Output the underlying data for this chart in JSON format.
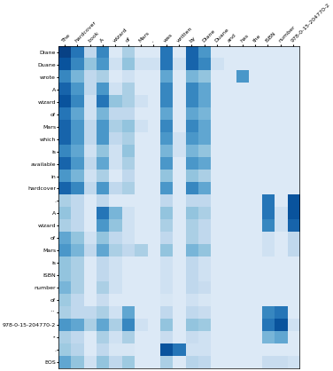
{
  "col_labels": [
    "The",
    "hardcover",
    "book",
    "A",
    "wizard",
    "of",
    "Mars",
    ",",
    "was",
    "written",
    "by",
    "Diane",
    "Duane",
    "and",
    "has",
    "the",
    "ISBN",
    "number",
    "978-0-15-204770-2"
  ],
  "row_labels": [
    "Diane",
    "Duane",
    "wrote",
    "A",
    "wizard",
    "of",
    "Mars",
    "which",
    "is",
    "available",
    "in",
    "hardcover",
    ".",
    "A",
    "wizard",
    "of",
    "Mars",
    "is",
    "ISBN",
    "number",
    "of",
    "``",
    "978-0-15-204770-2",
    "''",
    ".",
    "EOS"
  ],
  "matrix": [
    [
      0.7,
      0.55,
      0.2,
      0.5,
      0.1,
      0.25,
      0.1,
      0.1,
      0.55,
      0.1,
      0.6,
      0.45,
      0.1,
      0.1,
      0.1,
      0.1,
      0.1,
      0.1,
      0.1
    ],
    [
      0.65,
      0.5,
      0.3,
      0.45,
      0.15,
      0.3,
      0.15,
      0.15,
      0.55,
      0.15,
      0.6,
      0.5,
      0.15,
      0.1,
      0.1,
      0.1,
      0.1,
      0.1,
      0.1
    ],
    [
      0.5,
      0.35,
      0.2,
      0.25,
      0.1,
      0.15,
      0.1,
      0.1,
      0.4,
      0.1,
      0.35,
      0.3,
      0.1,
      0.1,
      0.45,
      0.1,
      0.1,
      0.1,
      0.1
    ],
    [
      0.6,
      0.45,
      0.2,
      0.45,
      0.15,
      0.25,
      0.1,
      0.1,
      0.5,
      0.1,
      0.5,
      0.4,
      0.1,
      0.1,
      0.1,
      0.1,
      0.1,
      0.1,
      0.1
    ],
    [
      0.65,
      0.5,
      0.15,
      0.55,
      0.3,
      0.25,
      0.15,
      0.1,
      0.5,
      0.1,
      0.5,
      0.4,
      0.1,
      0.1,
      0.1,
      0.1,
      0.1,
      0.1,
      0.1
    ],
    [
      0.55,
      0.4,
      0.15,
      0.35,
      0.2,
      0.2,
      0.1,
      0.1,
      0.4,
      0.1,
      0.4,
      0.35,
      0.1,
      0.1,
      0.1,
      0.1,
      0.1,
      0.1,
      0.1
    ],
    [
      0.6,
      0.45,
      0.2,
      0.45,
      0.25,
      0.3,
      0.15,
      0.1,
      0.5,
      0.1,
      0.5,
      0.4,
      0.1,
      0.1,
      0.1,
      0.1,
      0.1,
      0.1,
      0.1
    ],
    [
      0.6,
      0.45,
      0.2,
      0.45,
      0.2,
      0.25,
      0.1,
      0.1,
      0.45,
      0.15,
      0.45,
      0.4,
      0.1,
      0.1,
      0.1,
      0.1,
      0.1,
      0.1,
      0.1
    ],
    [
      0.5,
      0.4,
      0.15,
      0.3,
      0.15,
      0.3,
      0.1,
      0.1,
      0.35,
      0.15,
      0.35,
      0.3,
      0.1,
      0.1,
      0.1,
      0.1,
      0.1,
      0.1,
      0.1
    ],
    [
      0.6,
      0.45,
      0.2,
      0.4,
      0.15,
      0.25,
      0.1,
      0.1,
      0.45,
      0.1,
      0.45,
      0.4,
      0.1,
      0.1,
      0.1,
      0.1,
      0.1,
      0.1,
      0.1
    ],
    [
      0.45,
      0.35,
      0.15,
      0.25,
      0.1,
      0.2,
      0.1,
      0.1,
      0.3,
      0.1,
      0.3,
      0.25,
      0.1,
      0.1,
      0.1,
      0.1,
      0.1,
      0.1,
      0.1
    ],
    [
      0.6,
      0.5,
      0.2,
      0.45,
      0.2,
      0.25,
      0.1,
      0.1,
      0.45,
      0.1,
      0.5,
      0.4,
      0.1,
      0.1,
      0.1,
      0.1,
      0.1,
      0.1,
      0.1
    ],
    [
      0.25,
      0.2,
      0.1,
      0.2,
      0.1,
      0.1,
      0.1,
      0.1,
      0.2,
      0.1,
      0.2,
      0.2,
      0.1,
      0.1,
      0.1,
      0.1,
      0.55,
      0.1,
      0.65
    ],
    [
      0.3,
      0.2,
      0.1,
      0.55,
      0.35,
      0.15,
      0.1,
      0.1,
      0.3,
      0.1,
      0.3,
      0.25,
      0.1,
      0.1,
      0.1,
      0.1,
      0.55,
      0.15,
      0.65
    ],
    [
      0.25,
      0.2,
      0.1,
      0.45,
      0.3,
      0.15,
      0.1,
      0.1,
      0.25,
      0.1,
      0.25,
      0.2,
      0.1,
      0.1,
      0.1,
      0.1,
      0.5,
      0.15,
      0.6
    ],
    [
      0.4,
      0.3,
      0.15,
      0.3,
      0.2,
      0.15,
      0.1,
      0.1,
      0.2,
      0.1,
      0.25,
      0.2,
      0.1,
      0.1,
      0.1,
      0.1,
      0.15,
      0.1,
      0.2
    ],
    [
      0.45,
      0.35,
      0.2,
      0.4,
      0.25,
      0.2,
      0.25,
      0.1,
      0.3,
      0.1,
      0.35,
      0.3,
      0.1,
      0.1,
      0.1,
      0.1,
      0.15,
      0.1,
      0.2
    ],
    [
      0.3,
      0.25,
      0.1,
      0.2,
      0.15,
      0.1,
      0.1,
      0.1,
      0.15,
      0.1,
      0.2,
      0.15,
      0.1,
      0.1,
      0.1,
      0.1,
      0.1,
      0.1,
      0.1
    ],
    [
      0.3,
      0.25,
      0.1,
      0.2,
      0.15,
      0.1,
      0.1,
      0.1,
      0.15,
      0.1,
      0.2,
      0.15,
      0.1,
      0.1,
      0.1,
      0.1,
      0.1,
      0.1,
      0.1
    ],
    [
      0.35,
      0.25,
      0.1,
      0.25,
      0.15,
      0.1,
      0.1,
      0.1,
      0.15,
      0.1,
      0.2,
      0.18,
      0.1,
      0.1,
      0.1,
      0.1,
      0.1,
      0.1,
      0.1
    ],
    [
      0.28,
      0.2,
      0.1,
      0.18,
      0.1,
      0.1,
      0.1,
      0.1,
      0.12,
      0.1,
      0.15,
      0.12,
      0.1,
      0.1,
      0.1,
      0.1,
      0.1,
      0.1,
      0.1
    ],
    [
      0.25,
      0.2,
      0.2,
      0.25,
      0.15,
      0.4,
      0.1,
      0.1,
      0.2,
      0.1,
      0.2,
      0.18,
      0.1,
      0.1,
      0.1,
      0.1,
      0.5,
      0.55,
      0.1
    ],
    [
      0.45,
      0.4,
      0.25,
      0.4,
      0.25,
      0.5,
      0.15,
      0.1,
      0.3,
      0.1,
      0.3,
      0.28,
      0.1,
      0.1,
      0.1,
      0.1,
      0.55,
      0.65,
      0.15
    ],
    [
      0.25,
      0.2,
      0.1,
      0.25,
      0.15,
      0.25,
      0.1,
      0.1,
      0.18,
      0.1,
      0.18,
      0.15,
      0.1,
      0.1,
      0.1,
      0.1,
      0.35,
      0.4,
      0.1
    ],
    [
      0.28,
      0.22,
      0.1,
      0.2,
      0.12,
      0.12,
      0.1,
      0.1,
      0.65,
      0.55,
      0.15,
      0.15,
      0.1,
      0.1,
      0.1,
      0.1,
      0.1,
      0.1,
      0.1
    ],
    [
      0.4,
      0.3,
      0.15,
      0.3,
      0.2,
      0.28,
      0.1,
      0.1,
      0.25,
      0.1,
      0.22,
      0.2,
      0.1,
      0.1,
      0.1,
      0.1,
      0.18,
      0.18,
      0.15
    ]
  ],
  "cmap": "Blues",
  "vmin": 0.0,
  "vmax": 0.75
}
